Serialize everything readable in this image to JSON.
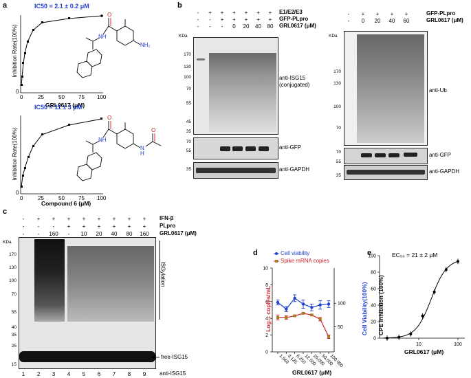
{
  "panels": {
    "a": "a",
    "b": "b",
    "c": "c",
    "d": "d",
    "e": "e"
  },
  "panel_a": {
    "top": {
      "ic50": "IC50 = 2.1 ± 0.2 μM",
      "ylabel": "Inhibition Rate(100%)",
      "xlabel": "GRL0617 (μM)",
      "xticks": [
        "0",
        "25",
        "50",
        "75",
        "100"
      ],
      "yticks": [
        "0",
        "50",
        "100"
      ],
      "chem_label": "NH₂"
    },
    "bottom": {
      "ic50": "IC50 = 11 ± 3 μM",
      "ylabel": "Inhibition Rate(100%)",
      "xlabel": "Compound 6 (μM)",
      "xticks": [
        "0",
        "25",
        "50",
        "75",
        "100"
      ],
      "yticks": [
        "0",
        "50",
        "100"
      ],
      "chem_label": "N"
    },
    "nh": "NH",
    "o": "O",
    "h": "H"
  },
  "panel_b_left": {
    "rows": [
      {
        "label": "E1/E2/E3",
        "signs": [
          "-",
          "+",
          "+",
          "+",
          "+",
          "+",
          "+"
        ]
      },
      {
        "label": "GFP-PLpro",
        "signs": [
          "-",
          "-",
          "+",
          "+",
          "+",
          "+",
          "+"
        ]
      },
      {
        "label": "GRL0617 (μM)",
        "signs": [
          "-",
          "-",
          "-",
          "0",
          "20",
          "40",
          "80"
        ]
      }
    ],
    "kda": "KDa",
    "markers_top": [
      "170",
      "130",
      "100",
      "70",
      "55",
      "45",
      "35"
    ],
    "markers_gfp": [
      "70",
      "55"
    ],
    "markers_gapdh": [
      "35"
    ],
    "antibodies": [
      "anti-ISG15",
      "(conjugated)",
      "anti-GFP",
      "anti-GAPDH"
    ]
  },
  "panel_b_right": {
    "rows": [
      {
        "label": "GFP-PLpro",
        "signs": [
          "-",
          "+",
          "+",
          "+",
          "+"
        ]
      },
      {
        "label": "GRL0617 (μM)",
        "signs": [
          "-",
          "0",
          "20",
          "40",
          "60"
        ]
      }
    ],
    "kda": "KDa",
    "markers_top": [
      "170",
      "130",
      "100",
      "70"
    ],
    "markers_gfp": [
      "70",
      "55"
    ],
    "markers_gapdh": [
      "35"
    ],
    "antibodies": [
      "anti-Ub",
      "anti-GFP",
      "anti-GAPDH"
    ]
  },
  "panel_c": {
    "rows": [
      {
        "label": "IFN-β",
        "signs": [
          "-",
          "+",
          "+",
          "+",
          "+",
          "+",
          "+",
          "+",
          "+"
        ]
      },
      {
        "label": "PLpro",
        "signs": [
          "-",
          "-",
          "-",
          "+",
          "+",
          "+",
          "+",
          "+",
          "+"
        ]
      },
      {
        "label": "GRL0617 (μM)",
        "signs": [
          "-",
          "-",
          "160",
          "-",
          "10",
          "20",
          "40",
          "80",
          "160"
        ]
      }
    ],
    "kda": "KDa",
    "markers": [
      "170",
      "130",
      "100",
      "70",
      "55",
      "40",
      "35",
      "25",
      "15"
    ],
    "isgylation": "ISGylation",
    "free_isg15": "free-ISG15",
    "lanes": [
      "1",
      "2",
      "3",
      "4",
      "5",
      "6",
      "7",
      "8",
      "9"
    ],
    "antibody": "anti-ISG15"
  },
  "chart_data": [
    {
      "type": "line",
      "panel": "d",
      "legend": [
        "Cell viability",
        "Spike mRNA copies"
      ],
      "categories": [
        "1.560",
        "3.125",
        "6.250",
        "12.500",
        "25.000",
        "50.000",
        "100.000"
      ],
      "xlabel": "GRL0617 (μM)",
      "ylabel_left": "Log₁₀ copies/mL",
      "ylabel_right": "Cell Viability(100%)",
      "left_ticks": [
        "0",
        "2",
        "4",
        "6",
        "8",
        "10"
      ],
      "right_ticks": [
        "50",
        "100"
      ],
      "series": [
        {
          "name": "Cell viability",
          "axis": "left",
          "color": "#1f3fd0",
          "values": [
            5.9,
            5.1,
            6.4,
            5.7,
            5.3,
            5.6,
            5.7
          ],
          "errors": [
            0.3,
            0.3,
            0.4,
            0.5,
            0.4,
            0.5,
            0.4
          ]
        },
        {
          "name": "Spike mRNA copies",
          "axis": "left",
          "color": "#d0202a",
          "values": [
            4.1,
            4.1,
            4.3,
            4.6,
            4.4,
            3.9,
            1.8
          ],
          "errors": [
            0.3,
            0.2,
            0.1,
            0.1,
            0.1,
            0.2,
            0.2
          ]
        }
      ],
      "ylim": [
        0,
        10
      ]
    },
    {
      "type": "line",
      "panel": "e",
      "annotation": "EC₅₀ = 21 ± 2 μM",
      "xlabel": "GRL0617 (μM)",
      "ylabel": "CPE Inhibition (100%)",
      "xticks": [
        "10",
        "100"
      ],
      "yticks": [
        "0",
        "20",
        "40",
        "60",
        "80",
        "100"
      ],
      "x": [
        1.56,
        3.125,
        6.25,
        12.5,
        25,
        50,
        100
      ],
      "y": [
        0,
        1,
        5,
        27,
        56,
        83,
        93
      ],
      "xscale": "log",
      "ylim": [
        0,
        100
      ]
    }
  ]
}
